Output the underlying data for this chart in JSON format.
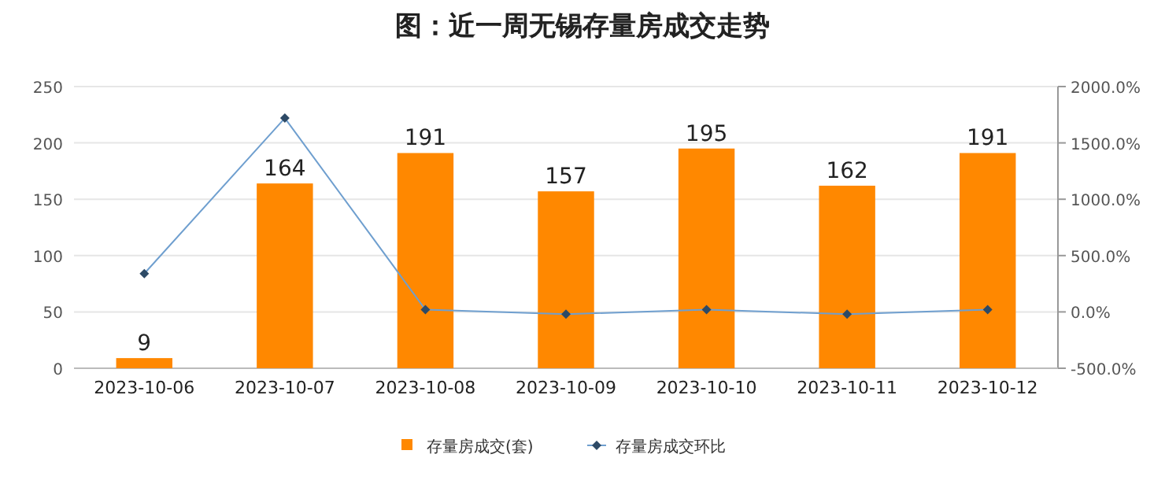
{
  "chart_data": {
    "type": "bar",
    "title": "图：近一周无锡存量房成交走势",
    "categories": [
      "2023-10-06",
      "2023-10-07",
      "2023-10-08",
      "2023-10-09",
      "2023-10-10",
      "2023-10-11",
      "2023-10-12"
    ],
    "series": [
      {
        "name": "存量房成交(套)",
        "color": "#ff8800",
        "values": [
          9,
          164,
          191,
          157,
          195,
          162,
          191
        ],
        "value_labels": [
          "9",
          "164",
          "191",
          "157",
          "195",
          "162",
          "191"
        ]
      },
      {
        "name": "存量房成交环比",
        "type": "line",
        "axis": "y2",
        "color": "#6f9fcf",
        "marker": "diamond",
        "values": [
          340,
          1720,
          20,
          -20,
          20,
          -20,
          20
        ]
      }
    ],
    "ylim": [
      0,
      250
    ],
    "yticks": [
      0,
      50,
      100,
      150,
      200,
      250
    ],
    "y2lim": [
      -500,
      2000
    ],
    "y2ticks": [
      {
        "value": -500,
        "label": "-500.0%"
      },
      {
        "value": 0,
        "label": "0.0%"
      },
      {
        "value": 500,
        "label": "500.0%"
      },
      {
        "value": 1000,
        "label": "1000.0%"
      },
      {
        "value": 1500,
        "label": "1500.0%"
      },
      {
        "value": 2000,
        "label": "2000.0%"
      }
    ],
    "grid": "y",
    "legend": "bottom"
  }
}
